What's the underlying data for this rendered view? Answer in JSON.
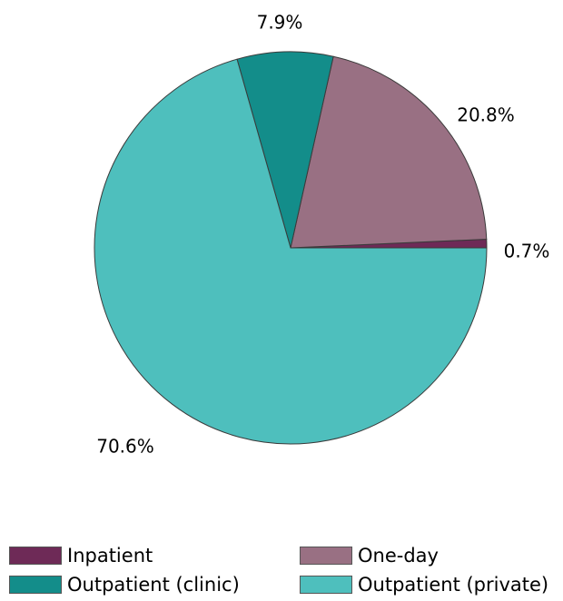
{
  "chart_data": {
    "type": "pie",
    "slices": [
      {
        "name": "Inpatient",
        "value": 0.7,
        "label": "0.7%",
        "color": "#6e2a57"
      },
      {
        "name": "One-day",
        "value": 20.8,
        "label": "20.8%",
        "color": "#997083"
      },
      {
        "name": "Outpatient (clinic)",
        "value": 7.9,
        "label": "7.9%",
        "color": "#138d8a"
      },
      {
        "name": "Outpatient (private)",
        "value": 70.6,
        "label": "70.6%",
        "color": "#4ebfbd"
      }
    ],
    "legend_position": "bottom",
    "start_angle_deg": 0,
    "direction": "counterclockwise"
  }
}
